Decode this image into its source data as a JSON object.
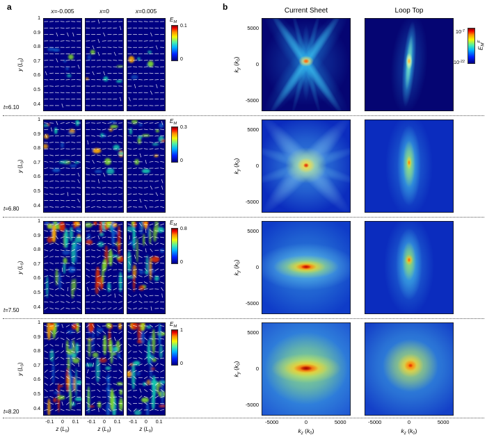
{
  "chart_data": {
    "panel_a": {
      "type": "heatmap",
      "label": "a",
      "quantity": "E_M",
      "column_headers": [
        "x=-0.005",
        "x=0",
        "x=0.005"
      ],
      "times": [
        "6.10",
        "6.80",
        "7.50",
        "8.20"
      ],
      "colorbar_max": [
        "0.1",
        "0.3",
        "0.8",
        "1"
      ],
      "colorbar_min": "0",
      "y_ticks": [
        "1",
        "0.9",
        "0.8",
        "0.7",
        "0.6",
        "0.5",
        "0.4"
      ],
      "x_ticks": [
        "-0.1",
        "0",
        "0.1"
      ],
      "ylim": [
        0.35,
        1
      ],
      "xlim": [
        -0.15,
        0.15
      ],
      "xlabel": "z (L0)",
      "ylabel": "y (L0)",
      "activity": [
        0.12,
        0.32,
        0.65,
        0.95
      ]
    },
    "panel_b": {
      "type": "heatmap",
      "label": "b",
      "column_headers": [
        "Current Sheet",
        "Loop Top"
      ],
      "times": [
        "6.10",
        "6.80",
        "7.50",
        "8.20"
      ],
      "y_ticks": [
        "5000",
        "0",
        "-5000"
      ],
      "x_ticks": [
        "-5000",
        "0",
        "5000"
      ],
      "ylim": [
        -6500,
        6500
      ],
      "xlim": [
        -6500,
        6500
      ],
      "xlabel": "k_z (k_0)",
      "ylabel": "k_y (k_0)",
      "colorbar": {
        "max": "1e-7",
        "min": "1e-22",
        "label": "E_M^F",
        "scale": "log"
      },
      "patterns": [
        [
          "x-cross-sharp",
          "vertical-streak-sharp"
        ],
        [
          "x-cross-diffuse",
          "vertical-blob"
        ],
        [
          "horizontal-ellipse",
          "vertical-blob-bright"
        ],
        [
          "horizontal-ellipse-broad",
          "round-blob"
        ]
      ]
    }
  },
  "fmt": {
    "a_headers": [
      [
        {
          "t": "x",
          "i": true
        },
        {
          "t": "=-0.005"
        }
      ],
      [
        {
          "t": "x",
          "i": true
        },
        {
          "t": "=0"
        }
      ],
      [
        {
          "t": "x",
          "i": true
        },
        {
          "t": "=0.005"
        }
      ]
    ],
    "a_times": [
      [
        {
          "t": "t",
          "i": true
        },
        {
          "t": "=6.10"
        }
      ],
      [
        {
          "t": "t",
          "i": true
        },
        {
          "t": "=6.80"
        }
      ],
      [
        {
          "t": "t",
          "i": true
        },
        {
          "t": "=7.50"
        }
      ],
      [
        {
          "t": "t",
          "i": true
        },
        {
          "t": "=8.20"
        }
      ]
    ],
    "a_ylabel": [
      {
        "t": "y",
        "i": true
      },
      {
        "t": " ("
      },
      {
        "t": "L",
        "i": true
      },
      {
        "t": "0",
        "sub": true
      },
      {
        "t": ")"
      }
    ],
    "a_xlabel": [
      {
        "t": "z",
        "i": true
      },
      {
        "t": " ("
      },
      {
        "t": "L",
        "i": true
      },
      {
        "t": "0",
        "sub": true
      },
      {
        "t": ")"
      }
    ],
    "a_cb_title": [
      {
        "t": "E",
        "i": true
      },
      {
        "t": "M",
        "sub": true,
        "i": true
      }
    ],
    "b_ylabel": [
      {
        "t": "k",
        "i": true
      },
      {
        "t": "y",
        "sub": true,
        "i": true
      },
      {
        "t": " ("
      },
      {
        "t": "k",
        "i": true
      },
      {
        "t": "0",
        "sub": true
      },
      {
        "t": ")"
      }
    ],
    "b_xlabel": [
      {
        "t": "k",
        "i": true
      },
      {
        "t": "z",
        "sub": true,
        "i": true
      },
      {
        "t": " ("
      },
      {
        "t": "k",
        "i": true
      },
      {
        "t": "0",
        "sub": true
      },
      {
        "t": ")"
      }
    ],
    "b_cb_top": [
      {
        "t": "10"
      },
      {
        "t": "-7",
        "sup": true
      }
    ],
    "b_cb_bottom": [
      {
        "t": "10"
      },
      {
        "t": "-22",
        "sup": true
      }
    ],
    "b_cb_label": [
      {
        "t": "E",
        "i": true
      },
      {
        "t": "M",
        "sub": true,
        "i": true
      },
      {
        "t": "F",
        "sup": true,
        "i": true
      }
    ]
  }
}
